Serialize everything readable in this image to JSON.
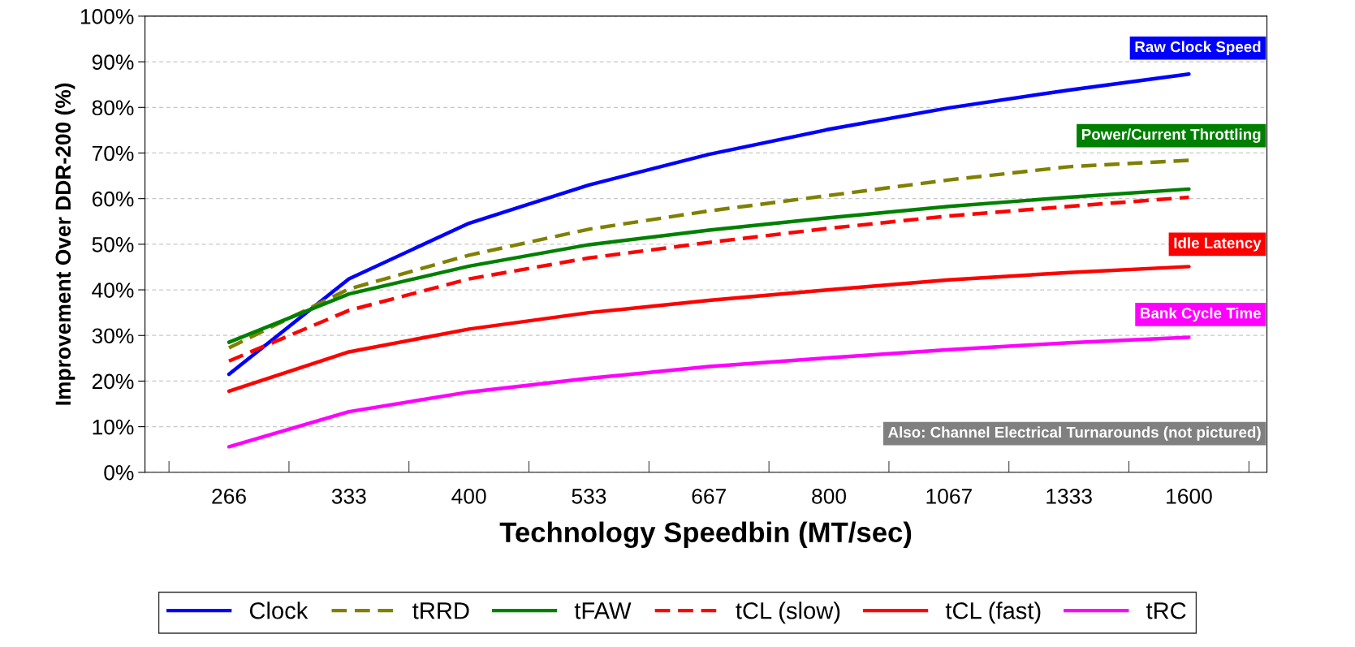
{
  "chart_data": {
    "type": "line",
    "xlabel": "Technology Speedbin (MT/sec)",
    "ylabel": "Improvement Over DDR-200 (%)",
    "categories": [
      "266",
      "333",
      "400",
      "533",
      "667",
      "800",
      "1067",
      "1333",
      "1600"
    ],
    "series": [
      {
        "name": "Clock",
        "color": "#0000ff",
        "line_style": "solid",
        "values": [
          21.5,
          42.4,
          54.6,
          63.0,
          69.7,
          75.2,
          79.9,
          83.8,
          87.3
        ]
      },
      {
        "name": "tRRD",
        "color": "#808000",
        "line_style": "dashed",
        "values": [
          27.3,
          40.2,
          47.6,
          53.3,
          57.3,
          60.7,
          64.1,
          67.0,
          68.4
        ]
      },
      {
        "name": "tFAW",
        "color": "#008000",
        "line_style": "solid",
        "values": [
          28.5,
          39.1,
          45.2,
          49.9,
          53.1,
          55.8,
          58.3,
          60.3,
          62.1
        ]
      },
      {
        "name": "tCL (slow)",
        "color": "#ff0000",
        "line_style": "dashed",
        "values": [
          24.4,
          35.5,
          42.4,
          47.0,
          50.4,
          53.5,
          56.2,
          58.3,
          60.3
        ]
      },
      {
        "name": "tCL (fast)",
        "color": "#ff0000",
        "line_style": "solid",
        "values": [
          17.8,
          26.4,
          31.4,
          35.0,
          37.7,
          40.0,
          42.2,
          43.8,
          45.1
        ]
      },
      {
        "name": "tRC",
        "color": "#ff00ff",
        "line_style": "solid",
        "values": [
          5.6,
          13.3,
          17.6,
          20.6,
          23.2,
          25.1,
          26.9,
          28.4,
          29.6
        ]
      }
    ],
    "annotations": [
      "Raw Clock Speed",
      "Power/Current Throttling",
      "Idle Latency",
      "Bank Cycle Time",
      "Also: Channel Electrical Turnarounds (not pictured)"
    ],
    "ylim": [
      0,
      100
    ],
    "yticks": [
      {
        "value": 0,
        "label": "0%"
      },
      {
        "value": 10,
        "label": "10%"
      },
      {
        "value": 20,
        "label": "20%"
      },
      {
        "value": 30,
        "label": "30%"
      },
      {
        "value": 40,
        "label": "40%"
      },
      {
        "value": 50,
        "label": "50%"
      },
      {
        "value": 60,
        "label": "60%"
      },
      {
        "value": 70,
        "label": "70%"
      },
      {
        "value": 80,
        "label": "80%"
      },
      {
        "value": 90,
        "label": "90%"
      },
      {
        "value": 100,
        "label": "100%"
      }
    ],
    "grid": "y",
    "legend": "bottom",
    "marker": "none"
  }
}
